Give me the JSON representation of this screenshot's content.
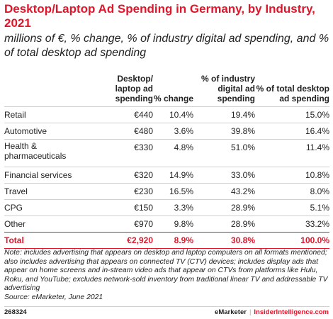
{
  "header": {
    "title": "Desktop/Laptop Ad Spending in Germany, by Industry, 2021",
    "subtitle": "millions of €, % change, % of industry digital ad spending, and % of total desktop ad spending"
  },
  "chart_data": {
    "type": "table",
    "columns": [
      "",
      "Desktop/ laptop ad spending",
      "% change",
      "% of industry digital ad spending",
      "% of total desktop ad spending"
    ],
    "rows": [
      [
        "Retail",
        "€440",
        "10.4%",
        "19.4%",
        "15.0%"
      ],
      [
        "Automotive",
        "€480",
        "3.6%",
        "39.8%",
        "16.4%"
      ],
      [
        "Health & pharmaceuticals",
        "€330",
        "4.8%",
        "51.0%",
        "11.4%"
      ],
      [
        "Financial services",
        "€320",
        "14.9%",
        "33.0%",
        "10.8%"
      ],
      [
        "Travel",
        "€230",
        "16.5%",
        "43.2%",
        "8.0%"
      ],
      [
        "CPG",
        "€150",
        "3.3%",
        "28.9%",
        "5.1%"
      ],
      [
        "Other",
        "€970",
        "9.8%",
        "28.9%",
        "33.2%"
      ]
    ],
    "total": [
      "Total",
      "€2,920",
      "8.9%",
      "30.8%",
      "100.0%"
    ]
  },
  "note": "Note: includes advertising that appears on desktop and laptop computers on all formats mentioned; also includes advertising that appears on connected TV (CTV) devices; includes display ads that appear on home screens and in-stream video ads that appear on CTVs from platforms like Hulu, Roku, and YouTube; excludes network-sold inventory from traditional linear TV and addressable TV advertising",
  "source": "Source: eMarketer, June 2021",
  "footer": {
    "chart_id": "268324",
    "brand_a": "eMarketer",
    "separator": "|",
    "brand_b": "InsiderIntelligence.com"
  },
  "colors": {
    "accent": "#e0162b",
    "text": "#222222",
    "rule": "#cfcfcf"
  }
}
